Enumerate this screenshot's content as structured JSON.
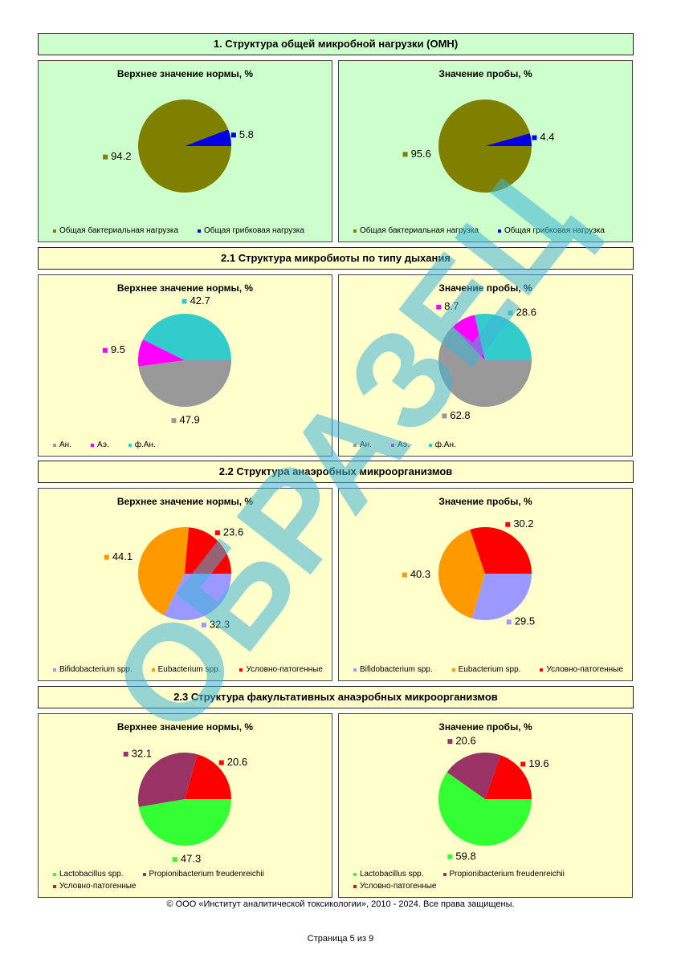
{
  "sections": [
    {
      "title": "1. Структура общей микробной нагрузки (ОМН)",
      "background": "#ccffcc",
      "charts": [
        {
          "type": "pie",
          "title": "Верхнее значение нормы, %",
          "categories": [
            "Общая бактериальная нагрузка",
            "Общая грибковая нагрузка"
          ],
          "colors": [
            "#808000",
            "#0000e6"
          ],
          "values": [
            94.2,
            5.8
          ]
        },
        {
          "type": "pie",
          "title": "Значение пробы, %",
          "categories": [
            "Общая бактериальная нагрузка",
            "Общая грибковая нагрузка"
          ],
          "colors": [
            "#808000",
            "#0000e6"
          ],
          "values": [
            95.6,
            4.4
          ]
        }
      ]
    },
    {
      "title": "2.1 Структура микробиоты по типу дыхания",
      "background": "#ffffcc",
      "charts": [
        {
          "type": "pie",
          "title": "Верхнее значение нормы, %",
          "categories": [
            "Ан.",
            "Аэ.",
            "ф.Ан."
          ],
          "colors": [
            "#999999",
            "#ff00ff",
            "#33cccc"
          ],
          "values": [
            47.9,
            9.5,
            42.7
          ]
        },
        {
          "type": "pie",
          "title": "Значение пробы, %",
          "categories": [
            "Ан.",
            "Аэ.",
            "ф.Ан."
          ],
          "colors": [
            "#999999",
            "#ff00ff",
            "#33cccc"
          ],
          "values": [
            62.8,
            8.7,
            28.6
          ]
        }
      ]
    },
    {
      "title": "2.2 Структура анаэробных микроорганизмов",
      "background": "#ffffcc",
      "charts": [
        {
          "type": "pie",
          "title": "Верхнее значение нормы, %",
          "categories": [
            "Bifidobacterium spp.",
            "Eubacterium spp.",
            "Условно-патогенные"
          ],
          "colors": [
            "#9999ff",
            "#ff9900",
            "#ff0000"
          ],
          "values": [
            32.3,
            44.1,
            23.6
          ]
        },
        {
          "type": "pie",
          "title": "Значение пробы, %",
          "categories": [
            "Bifidobacterium spp.",
            "Eubacterium spp.",
            "Условно-патогенные"
          ],
          "colors": [
            "#9999ff",
            "#ff9900",
            "#ff0000"
          ],
          "values": [
            29.5,
            40.3,
            30.2
          ]
        }
      ]
    },
    {
      "title": "2.3 Структура факультативных анаэробных микроорганизмов",
      "background": "#ffffcc",
      "charts": [
        {
          "type": "pie",
          "title": "Верхнее значение нормы, %",
          "categories": [
            "Lactobacillus spp.",
            "Propionibacterium freudenreichii",
            "Условно-патогенные"
          ],
          "colors": [
            "#33ff33",
            "#993366",
            "#ff0000"
          ],
          "values": [
            47.3,
            32.1,
            20.6
          ]
        },
        {
          "type": "pie",
          "title": "Значение пробы, %",
          "categories": [
            "Lactobacillus spp.",
            "Propionibacterium freudenreichii",
            "Условно-патогенные"
          ],
          "colors": [
            "#33ff33",
            "#993366",
            "#ff0000"
          ],
          "values": [
            59.8,
            20.6,
            19.6
          ]
        }
      ]
    }
  ],
  "copyright": "© ООО «Институт аналитической токсикологии», 2010 - 2024. Все права защищены.",
  "page_number": "Страница 5 из 9",
  "watermark": "ОБРАЗЕЦ"
}
